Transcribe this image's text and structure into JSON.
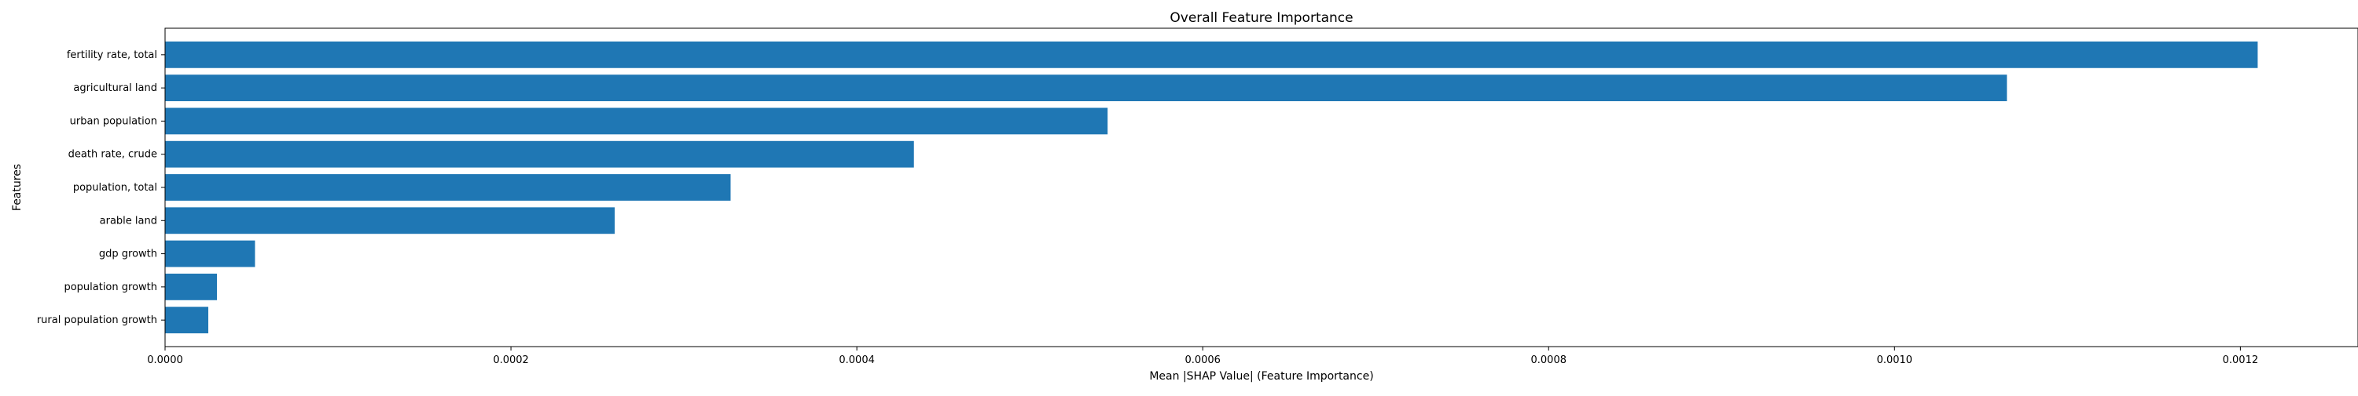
{
  "chart_data": {
    "type": "bar",
    "orientation": "horizontal",
    "title": "Overall Feature Importance",
    "xlabel": "Mean |SHAP Value| (Feature Importance)",
    "ylabel": "Features",
    "categories": [
      "fertility rate, total",
      "agricultural land",
      "urban population",
      "death rate, crude",
      "population, total",
      "arable land",
      "gdp growth",
      "population growth",
      "rural population growth"
    ],
    "values": [
      0.00121,
      0.001065,
      0.000545,
      0.000433,
      0.000327,
      0.00026,
      5.2e-05,
      3e-05,
      2.5e-05
    ],
    "xlim": [
      0,
      0.001268
    ],
    "xticks": [
      0,
      0.0002,
      0.0004,
      0.0006,
      0.0008,
      0.001,
      0.0012
    ],
    "xtick_labels": [
      "0.0000",
      "0.0002",
      "0.0004",
      "0.0006",
      "0.0008",
      "0.0010",
      "0.0012"
    ],
    "grid": false,
    "legend": "none",
    "bar_color": "#1f77b4"
  }
}
